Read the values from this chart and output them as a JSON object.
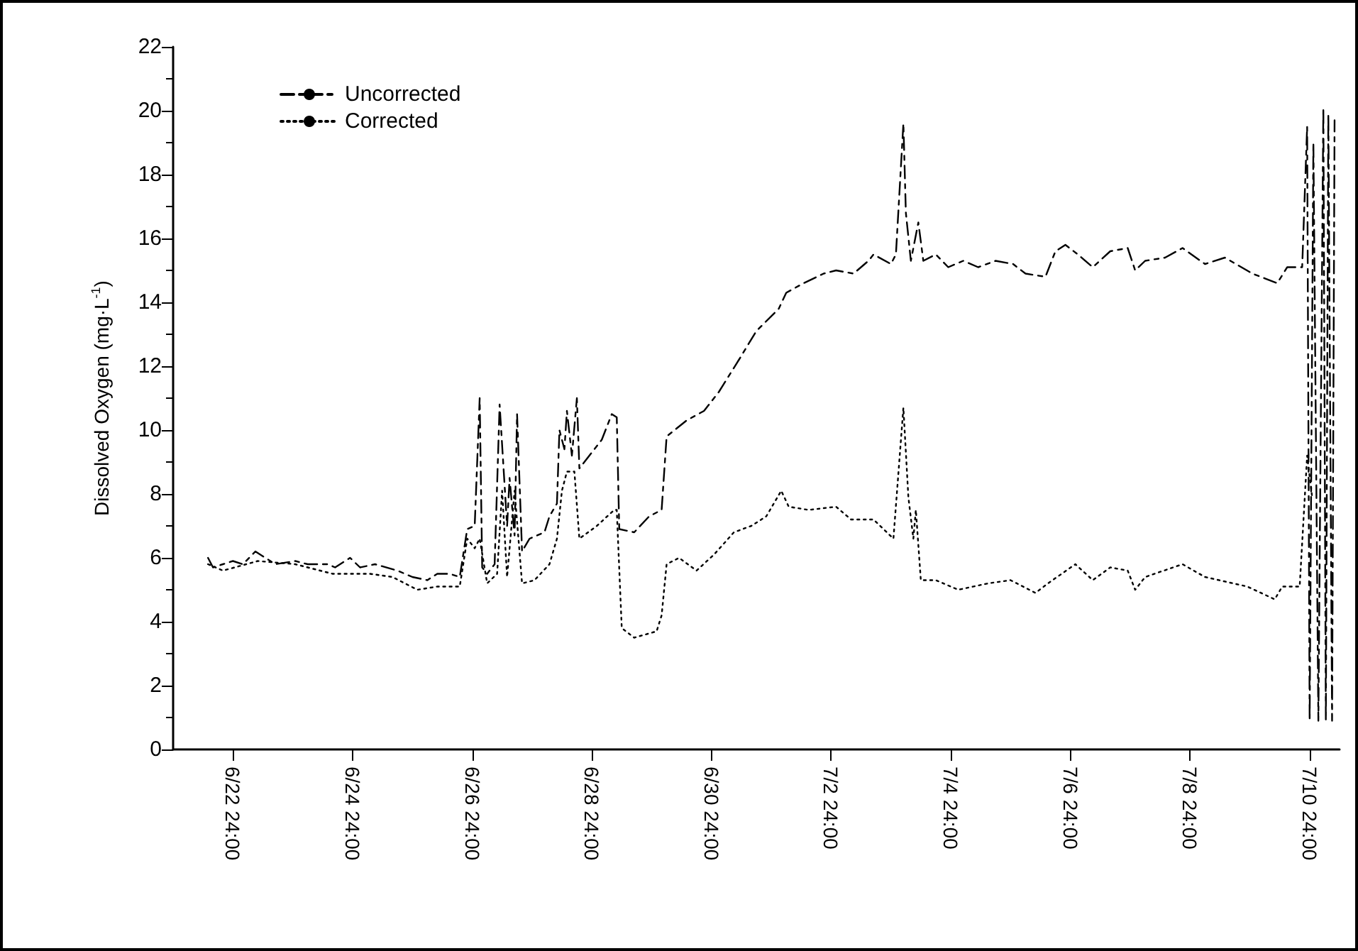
{
  "chart_data": {
    "type": "line",
    "ylabel": "Dissolved Oxygen (mg·L$^{-1}$)",
    "ylim": [
      0,
      22
    ],
    "yticks": [
      0,
      2,
      4,
      6,
      8,
      10,
      12,
      14,
      16,
      18,
      20,
      22
    ],
    "xlim": [
      "--06-22T00:00",
      "--07-11T12:00"
    ],
    "xticks": [
      {
        "value": "--06-23T00:00",
        "label": "6/22 24:00"
      },
      {
        "value": "--06-25T00:00",
        "label": "6/24 24:00"
      },
      {
        "value": "--06-27T00:00",
        "label": "6/26 24:00"
      },
      {
        "value": "--06-29T00:00",
        "label": "6/28 24:00"
      },
      {
        "value": "--07-01T00:00",
        "label": "6/30 24:00"
      },
      {
        "value": "--07-03T00:00",
        "label": "7/2 24:00"
      },
      {
        "value": "--07-05T00:00",
        "label": "7/4 24:00"
      },
      {
        "value": "--07-07T00:00",
        "label": "7/6 24:00"
      },
      {
        "value": "--07-09T00:00",
        "label": "7/8 24:00"
      },
      {
        "value": "--07-11T00:00",
        "label": "7/10 24:00"
      }
    ],
    "legend": "top left",
    "grid": false,
    "marker": "none",
    "series": [
      {
        "name": "Uncorrected",
        "color": "#000000",
        "line_style": "dashed",
        "x": [
          "--06-22T14:00",
          "--06-22T16:00",
          "--06-22T20:00",
          "--06-23T00:00",
          "--06-23T04:00",
          "--06-23T09:00",
          "--06-23T13:00",
          "--06-23T17:00",
          "--06-24T01:00",
          "--06-24T06:00",
          "--06-24T14:00",
          "--06-24T17:00",
          "--06-24T23:00",
          "--06-25T03:00",
          "--06-25T09:00",
          "--06-25T18:00",
          "--06-26T00:00",
          "--06-26T06:00",
          "--06-26T10:00",
          "--06-26T15:00",
          "--06-26T19:00",
          "--06-26T22:00",
          "--06-27T01:00",
          "--06-27T03:00",
          "--06-27T04:00",
          "--06-27T06:00",
          "--06-27T09:00",
          "--06-27T11:00",
          "--06-27T14:00",
          "--06-27T15:00",
          "--06-27T17:00",
          "--06-27T18:00",
          "--06-27T20:00",
          "--06-27T23:00",
          "--06-28T05:00",
          "--06-28T07:00",
          "--06-28T10:00",
          "--06-28T11:00",
          "--06-28T13:00",
          "--06-28T14:00",
          "--06-28T16:00",
          "--06-28T18:00",
          "--06-28T19:00",
          "--06-29T00:00",
          "--06-29T04:00",
          "--06-29T08:00",
          "--06-29T10:00",
          "--06-29T11:00",
          "--06-29T17:00",
          "--06-29T23:00",
          "--06-30T04:00",
          "--06-30T06:00",
          "--06-30T14:00",
          "--06-30T21:00",
          "--07-01T03:00",
          "--07-01T11:00",
          "--07-01T18:00",
          "--07-02T03:00",
          "--07-02T06:00",
          "--07-02T13:00",
          "--07-02T21:00",
          "--07-03T02:00",
          "--07-03T09:00",
          "--07-03T15:00",
          "--07-03T17:00",
          "--07-04T00:00",
          "--07-04T02:00",
          "--07-04T05:00",
          "--07-04T06:00",
          "--07-04T08:00",
          "--07-04T11:00",
          "--07-04T13:00",
          "--07-04T18:00",
          "--07-04T23:00",
          "--07-05T05:00",
          "--07-05T11:00",
          "--07-05T18:00",
          "--07-06T01:00",
          "--07-06T06:00",
          "--07-06T14:00",
          "--07-06T18:00",
          "--07-06T22:00",
          "--07-07T03:00",
          "--07-07T09:00",
          "--07-07T16:00",
          "--07-07T23:00",
          "--07-08T02:00",
          "--07-08T06:00",
          "--07-08T14:00",
          "--07-08T21:00",
          "--07-09T06:00",
          "--07-09T14:00",
          "--07-10T01:00",
          "--07-10T11:00",
          "--07-10T15:00",
          "--07-10T21:00",
          "--07-10T23:00",
          "--07-11T00:00",
          "--07-11T01:30",
          "--07-11T03:30",
          "--07-11T05:30",
          "--07-11T06:30",
          "--07-11T07:30",
          "--07-11T09:00",
          "--07-11T10:00"
        ],
        "values": [
          6.0,
          5.7,
          5.8,
          5.9,
          5.8,
          6.2,
          6.0,
          5.8,
          5.9,
          5.8,
          5.8,
          5.7,
          6.0,
          5.7,
          5.8,
          5.6,
          5.4,
          5.3,
          5.5,
          5.5,
          5.4,
          6.9,
          7.0,
          11.0,
          5.7,
          5.5,
          5.8,
          10.8,
          7.0,
          8.5,
          6.7,
          10.5,
          6.2,
          6.6,
          6.8,
          7.3,
          7.7,
          10.0,
          9.4,
          10.6,
          9.2,
          11.0,
          8.8,
          9.3,
          9.7,
          10.5,
          10.4,
          6.9,
          6.8,
          7.3,
          7.5,
          9.8,
          10.3,
          10.6,
          11.2,
          12.2,
          13.1,
          13.8,
          14.3,
          14.6,
          14.9,
          15.0,
          14.9,
          15.3,
          15.5,
          15.2,
          15.5,
          19.6,
          16.8,
          15.3,
          16.5,
          15.3,
          15.5,
          15.1,
          15.3,
          15.1,
          15.3,
          15.2,
          14.9,
          14.8,
          15.6,
          15.8,
          15.5,
          15.1,
          15.6,
          15.7,
          15.0,
          15.3,
          15.4,
          15.7,
          15.2,
          15.4,
          14.9,
          14.6,
          15.1,
          15.1,
          19.5,
          0.9,
          19.0,
          0.9,
          20.1,
          0.9,
          19.9,
          0.9,
          19.7
        ]
      },
      {
        "name": "Corrected",
        "color": "#000000",
        "line_style": "dotted",
        "x": [
          "--06-22T14:00",
          "--06-22T20:00",
          "--06-23T10:00",
          "--06-24T01:00",
          "--06-24T16:00",
          "--06-25T07:00",
          "--06-25T16:00",
          "--06-26T02:00",
          "--06-26T10:00",
          "--06-26T19:00",
          "--06-26T22:00",
          "--06-27T01:00",
          "--06-27T03:00",
          "--06-27T06:00",
          "--06-27T10:00",
          "--06-27T12:00",
          "--06-27T14:00",
          "--06-27T17:00",
          "--06-27T20:00",
          "--06-28T01:00",
          "--06-28T07:00",
          "--06-28T10:00",
          "--06-28T12:00",
          "--06-28T14:00",
          "--06-28T17:00",
          "--06-28T19:00",
          "--06-29T02:00",
          "--06-29T09:00",
          "--06-29T10:00",
          "--06-29T12:00",
          "--06-29T17:00",
          "--06-30T02:00",
          "--06-30T04:00",
          "--06-30T06:00",
          "--06-30T11:00",
          "--06-30T18:00",
          "--07-01T01:00",
          "--07-01T09:00",
          "--07-01T16:00",
          "--07-01T22:00",
          "--07-02T04:00",
          "--07-02T07:00",
          "--07-02T15:00",
          "--07-03T02:00",
          "--07-03T08:00",
          "--07-03T17:00",
          "--07-04T01:00",
          "--07-04T05:00",
          "--07-04T07:00",
          "--07-04T09:00",
          "--07-04T10:00",
          "--07-04T12:00",
          "--07-04T18:00",
          "--07-05T03:00",
          "--07-05T15:00",
          "--07-06T00:00",
          "--07-06T10:00",
          "--07-06T15:00",
          "--07-07T02:00",
          "--07-07T09:00",
          "--07-07T16:00",
          "--07-07T23:00",
          "--07-08T02:00",
          "--07-08T06:00",
          "--07-08T21:00",
          "--07-09T06:00",
          "--07-09T23:00",
          "--07-10T10:00",
          "--07-10T13:00",
          "--07-10T20:00",
          "--07-10T23:00",
          "--07-11T01:00"
        ],
        "values": [
          5.8,
          5.6,
          5.9,
          5.8,
          5.5,
          5.5,
          5.4,
          5.0,
          5.1,
          5.1,
          6.6,
          6.3,
          6.6,
          5.2,
          5.5,
          8.1,
          5.4,
          8.1,
          5.2,
          5.3,
          5.8,
          6.6,
          8.1,
          8.7,
          8.7,
          6.6,
          7.0,
          7.5,
          7.5,
          3.8,
          3.5,
          3.7,
          4.2,
          5.8,
          6.0,
          5.6,
          6.1,
          6.8,
          7.0,
          7.3,
          8.1,
          7.6,
          7.5,
          7.6,
          7.2,
          7.2,
          6.6,
          10.7,
          7.9,
          6.6,
          7.5,
          5.3,
          5.3,
          5.0,
          5.2,
          5.3,
          4.9,
          5.2,
          5.8,
          5.3,
          5.7,
          5.6,
          5.0,
          5.4,
          5.8,
          5.4,
          5.1,
          4.7,
          5.1,
          5.1,
          9.2,
          7.9
        ]
      }
    ]
  }
}
